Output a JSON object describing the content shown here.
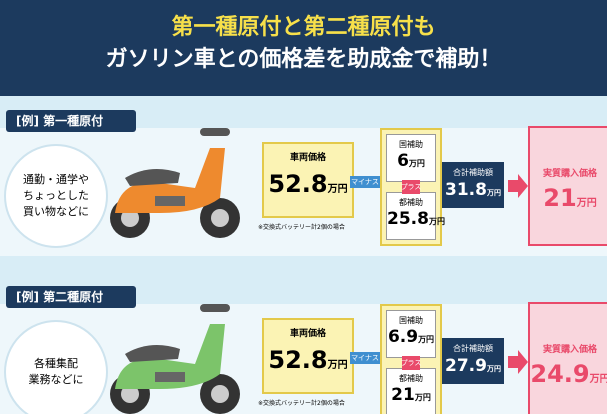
{
  "header": {
    "title_lines": [
      "第一種原付と第二種原付も",
      "ガソリン車との価格差を助成金で補助！"
    ]
  },
  "sections": [
    {
      "tag": "[例] 第一種原付",
      "description": [
        "通勤・通学や",
        "ちょっとした",
        "買い物などに"
      ],
      "vehicle_price_label": "車両価格",
      "vehicle_price": "52.8",
      "unit": "万円",
      "note": "※交換式バッテリー計2個の場合",
      "minus": "マイナス",
      "national_label": "国補助",
      "national": "6",
      "plus": "プラス",
      "metro_label": "都補助",
      "metro": "25.8",
      "total_label": "合計補助額",
      "total": "31.8",
      "final_label": "実質購入価格",
      "final": "21"
    },
    {
      "tag": "[例] 第二種原付",
      "description": [
        "各種集配",
        "業務などに"
      ],
      "vehicle_price_label": "車両価格",
      "vehicle_price": "52.8",
      "unit": "万円",
      "note": "※交換式バッテリー計2個の場合",
      "minus": "マイナス",
      "national_label": "国補助",
      "national": "6.9",
      "plus": "プラス",
      "metro_label": "都補助",
      "metro": "21",
      "total_label": "合計補助額",
      "total": "27.9",
      "final_label": "実質購入価格",
      "final": "24.9"
    }
  ]
}
